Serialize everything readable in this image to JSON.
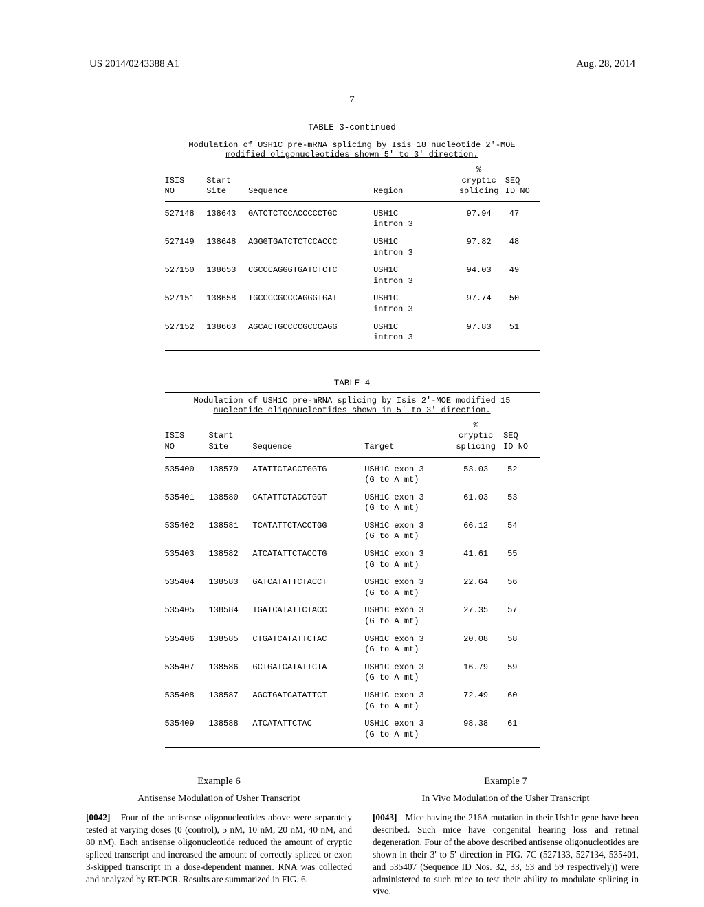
{
  "header": {
    "left": "US 2014/0243388 A1",
    "right": "Aug. 28, 2014"
  },
  "page_number": "7",
  "table3": {
    "title": "TABLE 3-continued",
    "caption_line1": "Modulation of USH1C pre-mRNA splicing by Isis 18 nucleotide 2'-MOE",
    "caption_line2": "modified oligonucleotides shown 5' to 3' direction.",
    "columns": {
      "isis": "ISIS\nNO",
      "start": "Start\nSite",
      "sequence": "Sequence",
      "region": "Region",
      "pct": "%\ncryptic\nsplicing",
      "seqid": "SEQ\nID NO"
    },
    "rows": [
      {
        "isis": "527148",
        "start": "138643",
        "seq": "GATCTCTCCACCCCCTGC",
        "region": "USH1C\nintron 3",
        "pct": "97.94",
        "seqid": "47"
      },
      {
        "isis": "527149",
        "start": "138648",
        "seq": "AGGGTGATCTCTCCACCC",
        "region": "USH1C\nintron 3",
        "pct": "97.82",
        "seqid": "48"
      },
      {
        "isis": "527150",
        "start": "138653",
        "seq": "CGCCCAGGGTGATCTCTC",
        "region": "USH1C\nintron 3",
        "pct": "94.03",
        "seqid": "49"
      },
      {
        "isis": "527151",
        "start": "138658",
        "seq": "TGCCCCGCCCAGGGTGAT",
        "region": "USH1C\nintron 3",
        "pct": "97.74",
        "seqid": "50"
      },
      {
        "isis": "527152",
        "start": "138663",
        "seq": "AGCACTGCCCCGCCCAGG",
        "region": "USH1C\nintron 3",
        "pct": "97.83",
        "seqid": "51"
      }
    ]
  },
  "table4": {
    "title": "TABLE 4",
    "caption_line1": "Modulation of USH1C pre-mRNA splicing by Isis 2'-MOE modified 15",
    "caption_line2": "nucleotide oligonucleotides shown in 5' to 3' direction.",
    "columns": {
      "isis": "ISIS\nNO",
      "start": "Start\nSite",
      "sequence": "Sequence",
      "target": "Target",
      "pct": "%\ncryptic\nsplicing",
      "seqid": "SEQ\nID NO"
    },
    "rows": [
      {
        "isis": "535400",
        "start": "138579",
        "seq": "ATATTCTACCTGGTG",
        "target": "USH1C exon 3\n(G to A mt)",
        "pct": "53.03",
        "seqid": "52"
      },
      {
        "isis": "535401",
        "start": "138580",
        "seq": "CATATTCTACCTGGT",
        "target": "USH1C exon 3\n(G to A mt)",
        "pct": "61.03",
        "seqid": "53"
      },
      {
        "isis": "535402",
        "start": "138581",
        "seq": "TCATATTCTACCTGG",
        "target": "USH1C exon 3\n(G to A mt)",
        "pct": "66.12",
        "seqid": "54"
      },
      {
        "isis": "535403",
        "start": "138582",
        "seq": "ATCATATTCTACCTG",
        "target": "USH1C exon 3\n(G to A mt)",
        "pct": "41.61",
        "seqid": "55"
      },
      {
        "isis": "535404",
        "start": "138583",
        "seq": "GATCATATTCTACCT",
        "target": "USH1C exon 3\n(G to A mt)",
        "pct": "22.64",
        "seqid": "56"
      },
      {
        "isis": "535405",
        "start": "138584",
        "seq": "TGATCATATTCTACC",
        "target": "USH1C exon 3\n(G to A mt)",
        "pct": "27.35",
        "seqid": "57"
      },
      {
        "isis": "535406",
        "start": "138585",
        "seq": "CTGATCATATTCTAC",
        "target": "USH1C exon 3\n(G to A mt)",
        "pct": "20.08",
        "seqid": "58"
      },
      {
        "isis": "535407",
        "start": "138586",
        "seq": "GCTGATCATATTCTA",
        "target": "USH1C exon 3\n(G to A mt)",
        "pct": "16.79",
        "seqid": "59"
      },
      {
        "isis": "535408",
        "start": "138587",
        "seq": "AGCTGATCATATTCT",
        "target": "USH1C exon 3\n(G to A mt)",
        "pct": "72.49",
        "seqid": "60"
      },
      {
        "isis": "535409",
        "start": "138588",
        "seq": "ATCATATTCTAC",
        "target": "USH1C exon 3\n(G to A mt)",
        "pct": "98.38",
        "seqid": "61"
      }
    ]
  },
  "example6": {
    "title": "Example 6",
    "subtitle": "Antisense Modulation of Usher Transcript",
    "para_num": "[0042]",
    "body": "Four of the antisense oligonucleotides above were separately tested at varying doses (0 (control), 5 nM, 10 nM, 20 nM, 40 nM, and 80 nM). Each antisense oligonucleotide reduced the amount of cryptic spliced transcript and increased the amount of correctly spliced or exon 3-skipped transcript in a dose-dependent manner. RNA was collected and analyzed by RT-PCR. Results are summarized in FIG. 6."
  },
  "example7": {
    "title": "Example 7",
    "subtitle": "In Vivo Modulation of the Usher Transcript",
    "para_num": "[0043]",
    "body": "Mice having the 216A mutation in their Ush1c gene have been described. Such mice have congenital hearing loss and retinal degeneration. Four of the above described antisense oligonucleotides are shown in their 3' to 5' direction in FIG. 7C (527133, 527134, 535401, and 535407 (Sequence ID Nos. 32, 33, 53 and 59 respectively)) were administered to such mice to test their ability to modulate splicing in vivo."
  }
}
